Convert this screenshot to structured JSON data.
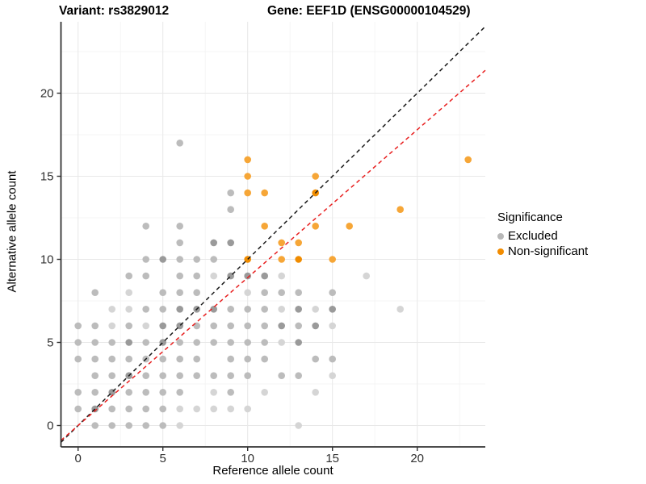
{
  "titles": {
    "variant": "Variant: rs3829012",
    "gene": "Gene: EEF1D (ENSG00000104529)"
  },
  "chart_data": {
    "type": "scatter",
    "xlabel": "Reference allele count",
    "ylabel": "Alternative allele count",
    "x_ticks": [
      0,
      5,
      10,
      15,
      20
    ],
    "y_ticks": [
      0,
      5,
      10,
      15,
      20
    ],
    "xlim": [
      -1.0,
      24.0
    ],
    "ylim": [
      -1.3,
      24.3
    ],
    "grid": "major-minor",
    "legend": {
      "title": "Significance",
      "position": "right",
      "entries": [
        {
          "label": "Excluded",
          "color": "#b8b8b8"
        },
        {
          "label": "Non-significant",
          "color": "#f28c00"
        }
      ]
    },
    "lines": [
      {
        "name": "identity-line",
        "style": "dashed",
        "color": "#1a1a1a",
        "slope": 1.0,
        "intercept": 0
      },
      {
        "name": "ratio-line",
        "style": "dashed",
        "color": "#e82020",
        "slope": 0.89,
        "intercept": 0
      }
    ],
    "point_palette": {
      "gray": {
        "l": "#d5d5d5",
        "m": "#bcbcbc",
        "d": "#9a9a9a"
      },
      "orange": {
        "m": "#f6a637",
        "d": "#f08c00"
      }
    },
    "series": [
      {
        "name": "Excluded",
        "color_key": "gray",
        "points": [
          [
            1,
            0,
            "m"
          ],
          [
            2,
            0,
            "m"
          ],
          [
            3,
            0,
            "m"
          ],
          [
            4,
            0,
            "m"
          ],
          [
            5,
            0,
            "m"
          ],
          [
            6,
            0,
            "l"
          ],
          [
            13,
            0,
            "l"
          ],
          [
            0,
            1,
            "m"
          ],
          [
            1,
            1,
            "d"
          ],
          [
            2,
            1,
            "m"
          ],
          [
            3,
            1,
            "m"
          ],
          [
            4,
            1,
            "m"
          ],
          [
            5,
            1,
            "m"
          ],
          [
            6,
            1,
            "l"
          ],
          [
            7,
            1,
            "l"
          ],
          [
            8,
            1,
            "l"
          ],
          [
            9,
            1,
            "l"
          ],
          [
            10,
            1,
            "l"
          ],
          [
            0,
            2,
            "m"
          ],
          [
            1,
            2,
            "m"
          ],
          [
            2,
            2,
            "d"
          ],
          [
            3,
            2,
            "m"
          ],
          [
            4,
            2,
            "m"
          ],
          [
            5,
            2,
            "m"
          ],
          [
            6,
            2,
            "m"
          ],
          [
            8,
            2,
            "l"
          ],
          [
            9,
            2,
            "m"
          ],
          [
            11,
            2,
            "l"
          ],
          [
            14,
            2,
            "l"
          ],
          [
            1,
            3,
            "m"
          ],
          [
            2,
            3,
            "m"
          ],
          [
            3,
            3,
            "d"
          ],
          [
            4,
            3,
            "m"
          ],
          [
            5,
            3,
            "m"
          ],
          [
            6,
            3,
            "m"
          ],
          [
            7,
            3,
            "m"
          ],
          [
            8,
            3,
            "m"
          ],
          [
            9,
            3,
            "m"
          ],
          [
            10,
            3,
            "m"
          ],
          [
            12,
            3,
            "m"
          ],
          [
            13,
            3,
            "m"
          ],
          [
            15,
            3,
            "l"
          ],
          [
            0,
            4,
            "m"
          ],
          [
            1,
            4,
            "m"
          ],
          [
            2,
            4,
            "m"
          ],
          [
            3,
            4,
            "m"
          ],
          [
            4,
            4,
            "m"
          ],
          [
            5,
            4,
            "m"
          ],
          [
            6,
            4,
            "m"
          ],
          [
            7,
            4,
            "m"
          ],
          [
            9,
            4,
            "m"
          ],
          [
            10,
            4,
            "m"
          ],
          [
            11,
            4,
            "m"
          ],
          [
            14,
            4,
            "m"
          ],
          [
            15,
            4,
            "m"
          ],
          [
            0,
            5,
            "m"
          ],
          [
            1,
            5,
            "m"
          ],
          [
            2,
            5,
            "m"
          ],
          [
            3,
            5,
            "d"
          ],
          [
            4,
            5,
            "m"
          ],
          [
            5,
            5,
            "d"
          ],
          [
            6,
            5,
            "m"
          ],
          [
            7,
            5,
            "m"
          ],
          [
            8,
            5,
            "m"
          ],
          [
            9,
            5,
            "m"
          ],
          [
            10,
            5,
            "m"
          ],
          [
            11,
            5,
            "m"
          ],
          [
            12,
            5,
            "l"
          ],
          [
            13,
            5,
            "d"
          ],
          [
            0,
            6,
            "m"
          ],
          [
            1,
            6,
            "m"
          ],
          [
            2,
            6,
            "l"
          ],
          [
            3,
            6,
            "m"
          ],
          [
            4,
            6,
            "l"
          ],
          [
            5,
            6,
            "d"
          ],
          [
            6,
            6,
            "d"
          ],
          [
            7,
            6,
            "m"
          ],
          [
            8,
            6,
            "m"
          ],
          [
            9,
            6,
            "m"
          ],
          [
            10,
            6,
            "m"
          ],
          [
            11,
            6,
            "m"
          ],
          [
            12,
            6,
            "d"
          ],
          [
            13,
            6,
            "m"
          ],
          [
            14,
            6,
            "d"
          ],
          [
            15,
            6,
            "l"
          ],
          [
            2,
            7,
            "l"
          ],
          [
            3,
            7,
            "l"
          ],
          [
            4,
            7,
            "m"
          ],
          [
            5,
            7,
            "m"
          ],
          [
            6,
            7,
            "d"
          ],
          [
            7,
            7,
            "d"
          ],
          [
            8,
            7,
            "d"
          ],
          [
            9,
            7,
            "m"
          ],
          [
            10,
            7,
            "m"
          ],
          [
            11,
            7,
            "m"
          ],
          [
            12,
            7,
            "l"
          ],
          [
            13,
            7,
            "d"
          ],
          [
            14,
            7,
            "l"
          ],
          [
            15,
            7,
            "d"
          ],
          [
            19,
            7,
            "l"
          ],
          [
            1,
            8,
            "m"
          ],
          [
            3,
            8,
            "l"
          ],
          [
            5,
            8,
            "m"
          ],
          [
            6,
            8,
            "m"
          ],
          [
            7,
            8,
            "m"
          ],
          [
            10,
            8,
            "l"
          ],
          [
            11,
            8,
            "m"
          ],
          [
            12,
            8,
            "m"
          ],
          [
            13,
            8,
            "m"
          ],
          [
            15,
            8,
            "m"
          ],
          [
            3,
            9,
            "m"
          ],
          [
            4,
            9,
            "m"
          ],
          [
            6,
            9,
            "m"
          ],
          [
            7,
            9,
            "m"
          ],
          [
            8,
            9,
            "l"
          ],
          [
            9,
            9,
            "d"
          ],
          [
            10,
            9,
            "d"
          ],
          [
            11,
            9,
            "d"
          ],
          [
            12,
            9,
            "l"
          ],
          [
            17,
            9,
            "l"
          ],
          [
            4,
            10,
            "m"
          ],
          [
            5,
            10,
            "d"
          ],
          [
            6,
            10,
            "m"
          ],
          [
            7,
            10,
            "m"
          ],
          [
            8,
            10,
            "m"
          ],
          [
            6,
            11,
            "m"
          ],
          [
            8,
            11,
            "d"
          ],
          [
            9,
            11,
            "d"
          ],
          [
            4,
            12,
            "m"
          ],
          [
            6,
            12,
            "m"
          ],
          [
            9,
            13,
            "m"
          ],
          [
            9,
            14,
            "m"
          ],
          [
            6,
            17,
            "m"
          ]
        ]
      },
      {
        "name": "Non-significant",
        "color_key": "orange",
        "points": [
          [
            10,
            10,
            "d"
          ],
          [
            12,
            10,
            "m"
          ],
          [
            13,
            10,
            "d"
          ],
          [
            15,
            10,
            "m"
          ],
          [
            12,
            11,
            "m"
          ],
          [
            13,
            11,
            "m"
          ],
          [
            11,
            12,
            "m"
          ],
          [
            14,
            12,
            "m"
          ],
          [
            16,
            12,
            "m"
          ],
          [
            19,
            13,
            "m"
          ],
          [
            10,
            14,
            "m"
          ],
          [
            11,
            14,
            "m"
          ],
          [
            14,
            14,
            "d"
          ],
          [
            10,
            15,
            "m"
          ],
          [
            14,
            15,
            "m"
          ],
          [
            10,
            16,
            "m"
          ],
          [
            23,
            16,
            "m"
          ]
        ]
      }
    ]
  }
}
